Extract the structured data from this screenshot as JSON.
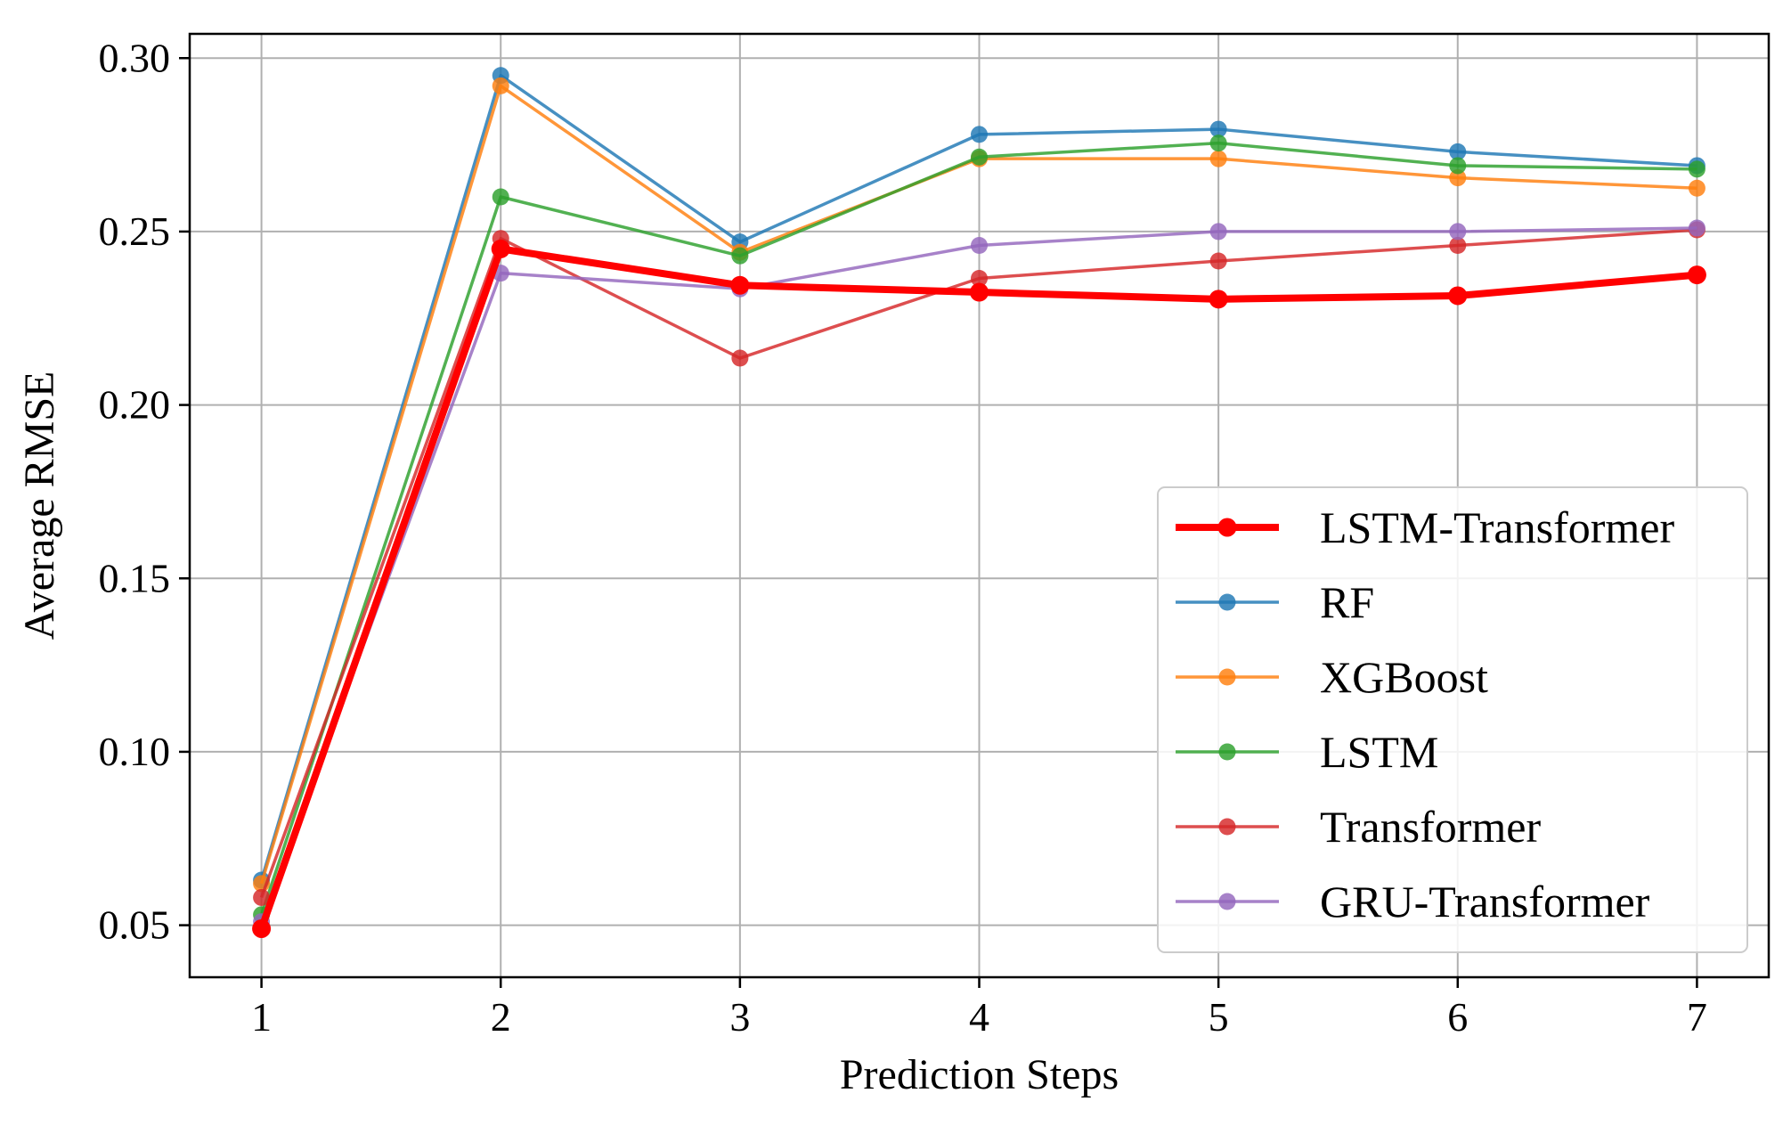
{
  "chart_data": {
    "type": "line",
    "xlabel": "Prediction Steps",
    "ylabel": "Average RMSE",
    "x": [
      1,
      2,
      3,
      4,
      5,
      6,
      7
    ],
    "xlim": [
      0.7,
      7.3
    ],
    "ylim": [
      0.035,
      0.307
    ],
    "xticks": [
      "1",
      "2",
      "3",
      "4",
      "5",
      "6",
      "7"
    ],
    "yticks": [
      {
        "value": 0.05,
        "label": "0.05"
      },
      {
        "value": 0.1,
        "label": "0.10"
      },
      {
        "value": 0.15,
        "label": "0.15"
      },
      {
        "value": 0.2,
        "label": "0.20"
      },
      {
        "value": 0.25,
        "label": "0.25"
      },
      {
        "value": 0.3,
        "label": "0.30"
      }
    ],
    "grid": true,
    "legend_position": "lower-right",
    "series": [
      {
        "name": "RF",
        "color": "#1f77b4",
        "highlight": false,
        "values": [
          0.063,
          0.295,
          0.247,
          0.278,
          0.2795,
          0.273,
          0.269
        ]
      },
      {
        "name": "XGBoost",
        "color": "#ff7f0e",
        "highlight": false,
        "values": [
          0.062,
          0.292,
          0.244,
          0.271,
          0.271,
          0.2655,
          0.2625
        ]
      },
      {
        "name": "LSTM",
        "color": "#2ca02c",
        "highlight": false,
        "values": [
          0.053,
          0.26,
          0.243,
          0.2715,
          0.2755,
          0.269,
          0.268
        ]
      },
      {
        "name": "Transformer",
        "color": "#d62728",
        "highlight": false,
        "values": [
          0.058,
          0.248,
          0.2135,
          0.2365,
          0.2415,
          0.246,
          0.2505
        ]
      },
      {
        "name": "GRU-Transformer",
        "color": "#9467bd",
        "highlight": false,
        "values": [
          0.051,
          0.238,
          0.2335,
          0.246,
          0.25,
          0.25,
          0.251
        ]
      },
      {
        "name": "LSTM-Transformer",
        "color": "#ff0000",
        "highlight": true,
        "values": [
          0.049,
          0.245,
          0.2345,
          0.2325,
          0.2305,
          0.2315,
          0.2375
        ]
      }
    ],
    "legend_order": [
      "LSTM-Transformer",
      "RF",
      "XGBoost",
      "LSTM",
      "Transformer",
      "GRU-Transformer"
    ]
  }
}
